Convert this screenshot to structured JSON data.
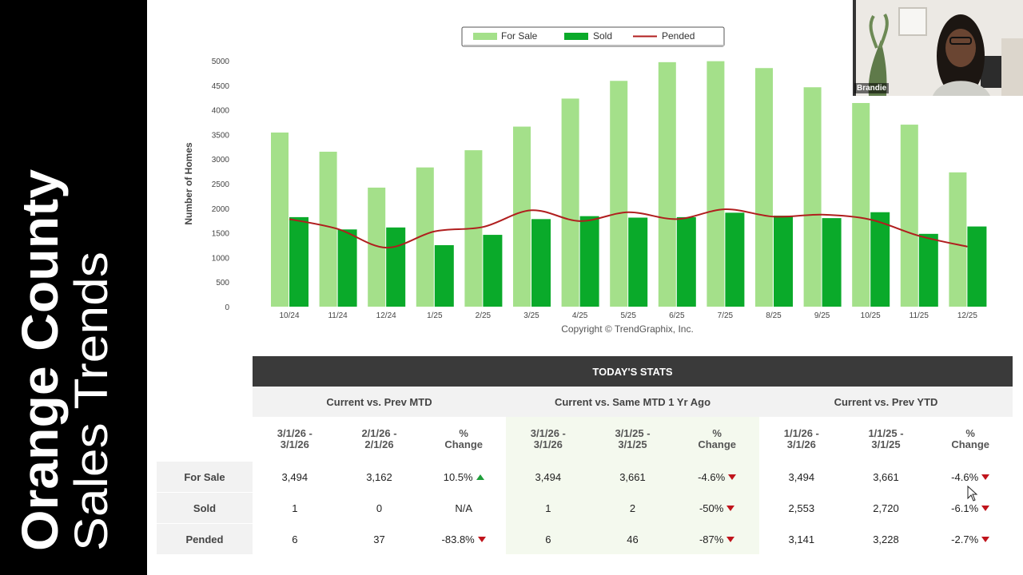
{
  "sidebar": {
    "title_line1": "Orange County",
    "title_line2": "Sales Trends",
    "background": "#000000",
    "text_color": "#ffffff"
  },
  "webcam": {
    "participant_name": "Brandie"
  },
  "chart_data": {
    "type": "bar",
    "categories": [
      "10/24",
      "11/24",
      "12/24",
      "1/25",
      "2/25",
      "3/25",
      "4/25",
      "5/25",
      "6/25",
      "7/25",
      "8/25",
      "9/25",
      "10/25",
      "11/25",
      "12/25"
    ],
    "series": [
      {
        "name": "For Sale",
        "type": "bar",
        "color": "#a4e08a",
        "values": [
          3540,
          3150,
          2420,
          2830,
          3180,
          3660,
          4230,
          4590,
          4970,
          4990,
          4850,
          4460,
          4140,
          3700,
          2730
        ]
      },
      {
        "name": "Sold",
        "type": "bar",
        "color": "#0aaa2a",
        "values": [
          1820,
          1570,
          1610,
          1250,
          1460,
          1780,
          1840,
          1810,
          1820,
          1910,
          1850,
          1800,
          1920,
          1480,
          1630
        ]
      },
      {
        "name": "Pended",
        "type": "line",
        "color": "#b01e1e",
        "values": [
          1780,
          1580,
          1200,
          1530,
          1620,
          1960,
          1740,
          1920,
          1780,
          1980,
          1830,
          1870,
          1770,
          1440,
          1220
        ]
      }
    ],
    "ylabel": "Number of Homes",
    "xlabel": "",
    "ylim": [
      0,
      5000
    ],
    "yticks": [
      0,
      500,
      1000,
      1500,
      2000,
      2500,
      3000,
      3500,
      4000,
      4500,
      5000
    ],
    "legend_position": "top-center",
    "grid": false,
    "footer": "Copyright © TrendGraphix, Inc."
  },
  "stats": {
    "title": "TODAY'S STATS",
    "groups": [
      "Current vs. Prev MTD",
      "Current vs. Same MTD 1 Yr Ago",
      "Current vs. Prev YTD"
    ],
    "col_headers": [
      [
        "3/1/26 -",
        "3/1/26"
      ],
      [
        "2/1/26 -",
        "2/1/26"
      ],
      [
        "%",
        "Change"
      ],
      [
        "3/1/26 -",
        "3/1/26"
      ],
      [
        "3/1/25 -",
        "3/1/25"
      ],
      [
        "%",
        "Change"
      ],
      [
        "1/1/26 -",
        "3/1/26"
      ],
      [
        "1/1/25 -",
        "3/1/25"
      ],
      [
        "%",
        "Change"
      ]
    ],
    "rows": [
      {
        "label": "For Sale",
        "values": [
          "3,494",
          "3,162",
          "10.5%",
          "3,494",
          "3,661",
          "-4.6%",
          "3,494",
          "3,661",
          "-4.6%"
        ],
        "trends": [
          "up",
          "down",
          "down"
        ]
      },
      {
        "label": "Sold",
        "values": [
          "1",
          "0",
          "N/A",
          "1",
          "2",
          "-50%",
          "2,553",
          "2,720",
          "-6.1%"
        ],
        "trends": [
          "none",
          "down",
          "down"
        ]
      },
      {
        "label": "Pended",
        "values": [
          "6",
          "37",
          "-83.8%",
          "6",
          "46",
          "-87%",
          "3,141",
          "3,228",
          "-2.7%"
        ],
        "trends": [
          "down",
          "down",
          "down"
        ]
      }
    ]
  }
}
